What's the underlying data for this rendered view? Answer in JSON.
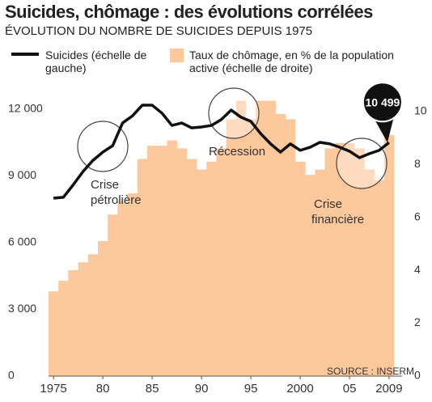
{
  "chart_data": {
    "type": "bar_line",
    "title": "Suicides, chômage : des évolutions corrélées",
    "subtitle": "ÉVOLUTION DU NOMBRE DE SUICIDES DEPUIS 1975",
    "source": "SOURCE : INSERM",
    "x": [
      1975,
      1976,
      1977,
      1978,
      1979,
      1980,
      1981,
      1982,
      1983,
      1984,
      1985,
      1986,
      1987,
      1988,
      1989,
      1990,
      1991,
      1992,
      1993,
      1994,
      1995,
      1996,
      1997,
      1998,
      1999,
      2000,
      2001,
      2002,
      2003,
      2004,
      2005,
      2006,
      2007,
      2008,
      2009
    ],
    "xlim": [
      1974.5,
      2009.5
    ],
    "xticks": [
      1975,
      {
        "value": 1980,
        "label": "80"
      },
      {
        "value": 1985,
        "label": "85"
      },
      {
        "value": 1990,
        "label": "90"
      },
      {
        "value": 1995,
        "label": "95"
      },
      2000,
      {
        "value": 2005,
        "label": "05"
      },
      2009
    ],
    "ylim": [
      0,
      12500
    ],
    "yticks": [
      0,
      {
        "value": 3000,
        "label": "3 000"
      },
      {
        "value": 6000,
        "label": "6 000"
      },
      {
        "value": 9000,
        "label": "9 000"
      },
      {
        "value": 12000,
        "label": "12 000"
      }
    ],
    "y2lim": [
      0,
      10.5
    ],
    "y2ticks": [
      0,
      2,
      4,
      6,
      8,
      10
    ],
    "grid": false,
    "series": [
      {
        "name": "Suicides (échelle de gauche)",
        "type": "line",
        "color": "#111111",
        "axis": "y",
        "values": [
          8000,
          8040,
          8600,
          9200,
          9700,
          10070,
          10360,
          11380,
          11700,
          12180,
          12180,
          11820,
          11270,
          11380,
          11160,
          11200,
          11270,
          11530,
          11960,
          11640,
          11450,
          10900,
          10440,
          10070,
          10440,
          10150,
          10290,
          10510,
          10440,
          10290,
          10110,
          9820,
          10000,
          10150,
          10499
        ],
        "value_labels": [
          null,
          null,
          null,
          null,
          null,
          null,
          null,
          null,
          null,
          null,
          null,
          null,
          null,
          null,
          null,
          null,
          null,
          null,
          null,
          null,
          null,
          null,
          null,
          null,
          null,
          null,
          null,
          null,
          null,
          null,
          null,
          null,
          null,
          null,
          "10 499"
        ]
      },
      {
        "name": "Taux de chômage, en % de la population active (échelle de droite)",
        "type": "bar",
        "color": "#fdc89b",
        "axis": "y2",
        "values": [
          3.2,
          3.6,
          4.0,
          4.3,
          4.6,
          5.1,
          6.1,
          6.6,
          6.9,
          8.2,
          8.7,
          8.7,
          8.9,
          8.6,
          8.2,
          7.8,
          8.1,
          8.6,
          9.7,
          10.4,
          9.7,
          10.4,
          10.4,
          9.9,
          9.7,
          8.1,
          7.6,
          7.8,
          8.6,
          8.8,
          8.8,
          8.6,
          7.8,
          7.4,
          9.1
        ]
      }
    ],
    "annotations": [
      [
        "Crise",
        "pétrolière"
      ],
      [
        "Récession"
      ],
      [
        "Crise",
        "financière"
      ]
    ]
  }
}
